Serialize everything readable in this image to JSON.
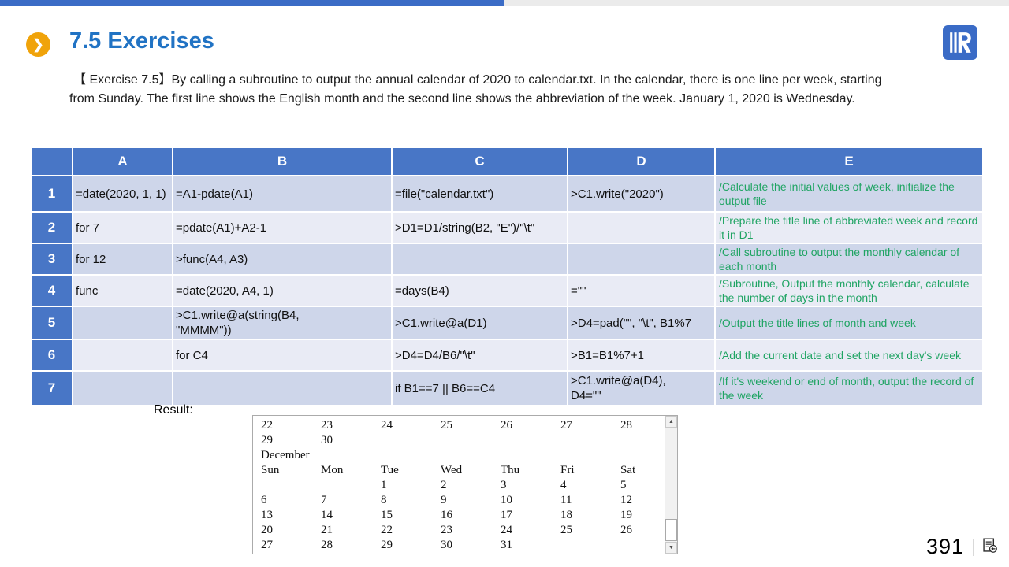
{
  "colors": {
    "topbar_blue": "#3B6CC6",
    "topbar_gray": "#EBEBEB",
    "title_blue": "#2173C4",
    "icon_orange": "#F0A30A",
    "table_header_blue": "#4876C6",
    "band_dark": "#CED6EA",
    "band_light": "#E9EBF5",
    "comment_green": "#1FA463"
  },
  "header": {
    "title": "7.5 Exercises",
    "chevron_icon": "❯",
    "logo": "raqsoft-logo"
  },
  "description": {
    "line1": "【 Exercise 7.5】By calling a subroutine to output the annual calendar of 2020 to calendar.txt. In the calendar, there is one line per week, starting",
    "line2": "from Sunday. The first line shows the English month and the second line shows the abbreviation of the week. January 1, 2020 is Wednesday."
  },
  "table": {
    "columns": [
      "A",
      "B",
      "C",
      "D",
      "E"
    ],
    "rows": [
      {
        "num": "1",
        "cells": [
          "=date(2020, 1, 1)",
          "=A1-pdate(A1)",
          "=file(\"calendar.txt\")",
          ">C1.write(\"2020\")"
        ],
        "comment": "/Calculate the initial values of week, initialize the output file"
      },
      {
        "num": "2",
        "cells": [
          "for 7",
          "=pdate(A1)+A2-1",
          ">D1=D1/string(B2, \"E\")/\"\\t\"",
          ""
        ],
        "comment": "/Prepare the title line of abbreviated week and record it in D1"
      },
      {
        "num": "3",
        "cells": [
          "for 12",
          ">func(A4, A3)",
          "",
          ""
        ],
        "comment": "/Call subroutine to output the monthly calendar of each month"
      },
      {
        "num": "4",
        "cells": [
          "func",
          "=date(2020, A4, 1)",
          "=days(B4)",
          "=\"\""
        ],
        "comment": "/Subroutine, Output the monthly calendar, calculate the number of days in the month"
      },
      {
        "num": "5",
        "cells": [
          "",
          ">C1.write@a(string(B4, \"MMMM\"))",
          ">C1.write@a(D1)",
          ">D4=pad(\"\", \"\\t\", B1%7"
        ],
        "comment": "/Output the title lines of month and week"
      },
      {
        "num": "6",
        "cells": [
          "",
          "for C4",
          ">D4=D4/B6/\"\\t\"",
          ">B1=B1%7+1"
        ],
        "comment": "/Add the current date and set the next day's week"
      },
      {
        "num": "7",
        "cells": [
          "",
          "",
          "if B1==7 || B6==C4",
          ">C1.write@a(D4), D4=\"\""
        ],
        "comment": "/If it's weekend or end of month, output the record of the week"
      }
    ]
  },
  "result": {
    "label": "Result:",
    "calendar_lines": [
      [
        "22",
        "23",
        "24",
        "25",
        "26",
        "27",
        "28"
      ],
      [
        "29",
        "30"
      ],
      [
        "December"
      ],
      [
        "Sun",
        "Mon",
        "Tue",
        "Wed",
        "Thu",
        "Fri",
        "Sat"
      ],
      [
        "",
        "",
        "1",
        "2",
        "3",
        "4",
        "5"
      ],
      [
        "6",
        "7",
        "8",
        "9",
        "10",
        "11",
        "12"
      ],
      [
        "13",
        "14",
        "15",
        "16",
        "17",
        "18",
        "19"
      ],
      [
        "20",
        "21",
        "22",
        "23",
        "24",
        "25",
        "26"
      ],
      [
        "27",
        "28",
        "29",
        "30",
        "31"
      ]
    ],
    "scroll_up_glyph": "▲",
    "scroll_down_glyph": "▼"
  },
  "footer": {
    "page_number": "391",
    "icon": "document-return"
  }
}
